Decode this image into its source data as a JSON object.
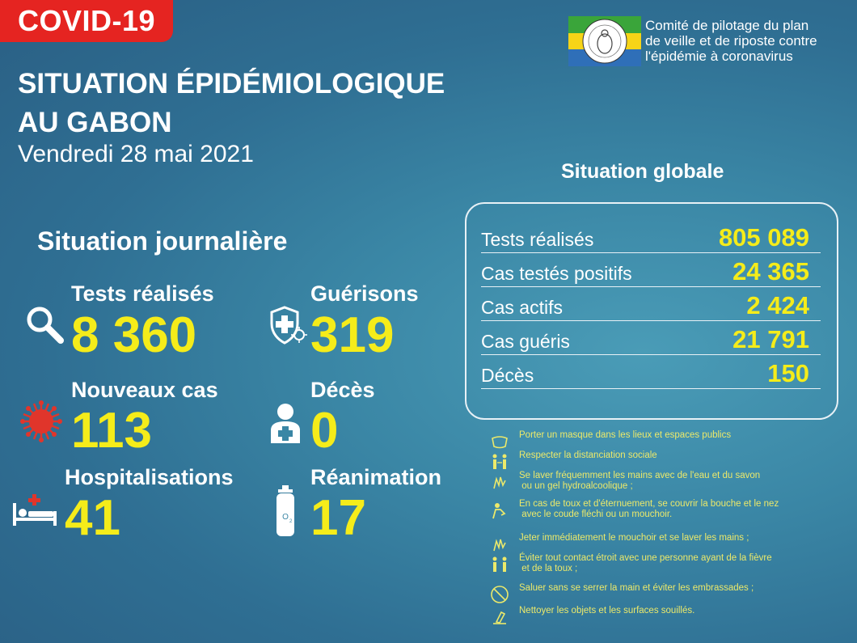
{
  "badge": "COVID-19",
  "title_line1": "SITUATION ÉPIDÉMIOLOGIQUE",
  "title_line2": "AU GABON",
  "date": "Vendredi 28 mai 2021",
  "committee": [
    "Comité de pilotage du plan",
    "de veille et de riposte contre",
    "l'épidémie à coronavirus"
  ],
  "daily": {
    "heading": "Situation journalière",
    "tests": {
      "label": "Tests réalisés",
      "value": "8 360",
      "icon": "magnifier-icon"
    },
    "recoveries": {
      "label": "Guérisons",
      "value": "319",
      "icon": "shield-virus-icon"
    },
    "new_cases": {
      "label": "Nouveaux cas",
      "value": "113",
      "icon": "virus-icon"
    },
    "deaths": {
      "label": "Décès",
      "value": "0",
      "icon": "person-cross-icon"
    },
    "hospital": {
      "label": "Hospitalisations",
      "value": "41",
      "icon": "hospital-bed-icon"
    },
    "icu": {
      "label": "Réanimation",
      "value": "17",
      "icon": "oxygen-tank-icon"
    }
  },
  "global": {
    "heading": "Situation globale",
    "rows": [
      {
        "label": "Tests réalisés",
        "value": "805 089"
      },
      {
        "label": "Cas testés positifs",
        "value": "24 365"
      },
      {
        "label": "Cas actifs",
        "value": "2 424"
      },
      {
        "label": "Cas guéris",
        "value": "21 791"
      },
      {
        "label": "Décès",
        "value": "150"
      }
    ]
  },
  "tips": [
    "Porter un masque dans les lieux et espaces publics",
    "Respecter la distanciation sociale",
    "Se laver fréquemment les mains avec de l'eau et du savon\n ou un gel hydroalcoolique ;",
    "En cas de toux et d'éternuement, se couvrir la bouche et le nez\n avec le coude fléchi ou un mouchoir.",
    "Jeter immédiatement le mouchoir et se laver les mains ;",
    "Éviter tout contact étroit avec une personne ayant de la fièvre\n et de la toux ;",
    "Saluer sans se serrer la main et éviter les embrassades ;",
    "Nettoyer les objets et les surfaces souillés."
  ],
  "colors": {
    "accent": "#f5ec1a",
    "badge": "#e52421",
    "virus": "#e0352b"
  }
}
